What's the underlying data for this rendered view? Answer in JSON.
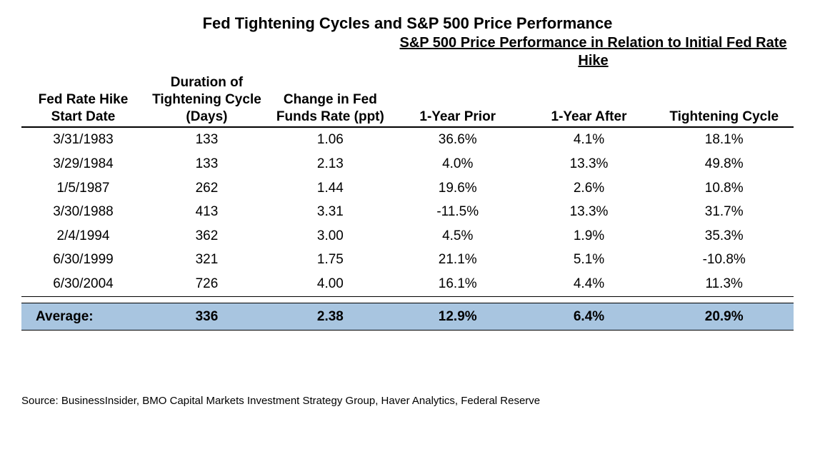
{
  "title": "Fed Tightening Cycles and S&P 500 Price Performance",
  "subtitle": "S&P 500 Price Performance in Relation to Initial Fed Rate Hike",
  "columns": {
    "c1": "Fed Rate Hike Start Date",
    "c2": "Duration of Tightening Cycle (Days)",
    "c3": "Change in Fed Funds Rate (ppt)",
    "c4": "1-Year Prior",
    "c5": "1-Year After",
    "c6": "Tightening Cycle"
  },
  "rows": [
    {
      "date": "3/31/1983",
      "duration": "133",
      "change": "1.06",
      "prior": "36.6%",
      "after": "4.1%",
      "cycle": "18.1%"
    },
    {
      "date": "3/29/1984",
      "duration": "133",
      "change": "2.13",
      "prior": "4.0%",
      "after": "13.3%",
      "cycle": "49.8%"
    },
    {
      "date": "1/5/1987",
      "duration": "262",
      "change": "1.44",
      "prior": "19.6%",
      "after": "2.6%",
      "cycle": "10.8%"
    },
    {
      "date": "3/30/1988",
      "duration": "413",
      "change": "3.31",
      "prior": "-11.5%",
      "after": "13.3%",
      "cycle": "31.7%"
    },
    {
      "date": "2/4/1994",
      "duration": "362",
      "change": "3.00",
      "prior": "4.5%",
      "after": "1.9%",
      "cycle": "35.3%"
    },
    {
      "date": "6/30/1999",
      "duration": "321",
      "change": "1.75",
      "prior": "21.1%",
      "after": "5.1%",
      "cycle": "-10.8%"
    },
    {
      "date": "6/30/2004",
      "duration": "726",
      "change": "4.00",
      "prior": "16.1%",
      "after": "4.4%",
      "cycle": "11.3%"
    }
  ],
  "average": {
    "label": "Average:",
    "duration": "336",
    "change": "2.38",
    "prior": "12.9%",
    "after": "6.4%",
    "cycle": "20.9%"
  },
  "source": "Source: BusinessInsider, BMO Capital Markets Investment Strategy Group, Haver Analytics, Federal Reserve",
  "colors": {
    "avg_bg": "#a8c5e0",
    "text": "#000000",
    "background": "#ffffff"
  }
}
